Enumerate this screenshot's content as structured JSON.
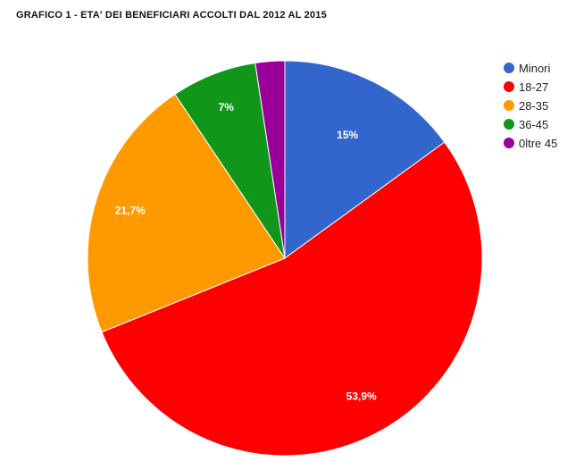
{
  "chart_data": {
    "type": "pie",
    "title": "GRAFICO 1 - ETA' DEI BENEFICIARI ACCOLTI DAL 2012 AL 2015",
    "categories": [
      "Minori",
      "18-27",
      "28-35",
      "36-45",
      "0ltre 45"
    ],
    "values": [
      15,
      53.9,
      21.7,
      7,
      2.4
    ],
    "data_labels": [
      "15%",
      "53,9%",
      "21,7%",
      "7%",
      ""
    ],
    "colors": [
      "#3366cc",
      "#ff0000",
      "#ff9900",
      "#109618",
      "#990099"
    ],
    "legend_position": "right",
    "start_angle": "12 o'clock",
    "direction": "clockwise"
  }
}
